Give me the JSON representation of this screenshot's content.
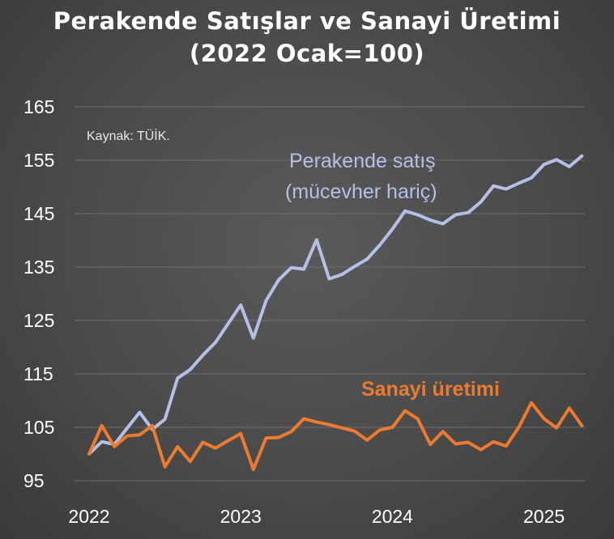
{
  "chart_data": {
    "type": "line",
    "title": "Perakende Satışlar ve Sanayi Üretimi",
    "subtitle": "(2022 Ocak=100)",
    "source_note": "Kaynak: TÜİK.",
    "ylim": [
      95,
      165
    ],
    "yticks": [
      "95",
      "105",
      "115",
      "125",
      "135",
      "145",
      "155",
      "165"
    ],
    "xticks": [
      "2022",
      "2023",
      "2024",
      "2025"
    ],
    "xlim_months": [
      0,
      40
    ],
    "grid": true,
    "legend": "none",
    "series": [
      {
        "name": "Perakende satış (mücevher hariç)",
        "label_lines": [
          "Perakende satış",
          "(mücevher hariç)"
        ],
        "color": "#b4c0e6",
        "values": [
          100,
          102.3,
          101.8,
          104.8,
          107.8,
          104.6,
          106.5,
          114.2,
          115.8,
          118.5,
          120.9,
          124.4,
          127.9,
          121.7,
          128.7,
          132.6,
          134.9,
          134.6,
          140.1,
          132.8,
          133.6,
          135.1,
          136.5,
          139.1,
          142.1,
          145.5,
          144.8,
          143.8,
          143.1,
          144.8,
          145.2,
          147.2,
          150.2,
          149.6,
          150.7,
          151.7,
          154.2,
          155.1,
          153.8,
          155.8
        ]
      },
      {
        "name": "Sanayi üretimi",
        "label_lines": [
          "Sanayi üretimi"
        ],
        "color": "#ec7b31",
        "values": [
          100,
          105.3,
          101.4,
          103.4,
          103.6,
          105.3,
          97.6,
          101.4,
          98.6,
          102.2,
          101.1,
          102.5,
          103.8,
          97.1,
          103.0,
          103.1,
          104.2,
          106.6,
          106.0,
          105.5,
          104.9,
          104.3,
          102.6,
          104.5,
          105.0,
          108.1,
          106.6,
          101.8,
          104.2,
          101.9,
          102.2,
          100.8,
          102.3,
          101.5,
          105.0,
          109.6,
          106.6,
          104.9,
          108.6,
          105.3
        ]
      }
    ]
  }
}
